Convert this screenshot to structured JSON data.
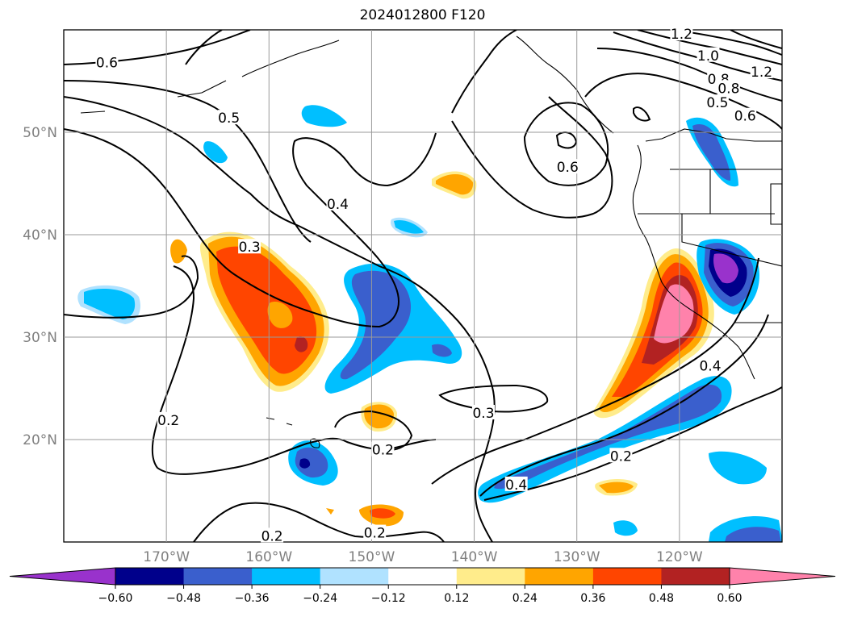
{
  "title": "2024012800 F120",
  "map": {
    "projection": "equirectangular",
    "lon_range": [
      -180,
      -110
    ],
    "lat_range": [
      10,
      60
    ],
    "lon_ticks": [
      {
        "value": -170,
        "label": "170°W"
      },
      {
        "value": -160,
        "label": "160°W"
      },
      {
        "value": -150,
        "label": "150°W"
      },
      {
        "value": -140,
        "label": "140°W"
      },
      {
        "value": -130,
        "label": "130°W"
      },
      {
        "value": -120,
        "label": "120°W"
      }
    ],
    "lat_ticks": [
      {
        "value": 20,
        "label": "20°N"
      },
      {
        "value": 30,
        "label": "30°N"
      },
      {
        "value": 40,
        "label": "40°N"
      },
      {
        "value": 50,
        "label": "50°N"
      }
    ],
    "gridlines": true
  },
  "colorbar": {
    "extend": "both",
    "boundaries": [
      -0.6,
      -0.48,
      -0.36,
      -0.24,
      -0.12,
      0.12,
      0.24,
      0.36,
      0.48,
      0.6
    ],
    "tick_labels": [
      "−0.60",
      "−0.48",
      "−0.36",
      "−0.24",
      "−0.12",
      "0.12",
      "0.24",
      "0.36",
      "0.48",
      "0.60"
    ],
    "colors": [
      "#9932cc",
      "#00008b",
      "#3a5fcd",
      "#00bfff",
      "#b0e2ff",
      "#ffffff",
      "#ffec8b",
      "#ffa500",
      "#ff4500",
      "#b22222",
      "#ff82ab"
    ]
  },
  "contour_labels": [
    {
      "text": "0.6",
      "lon": -175.8,
      "lat": 56.8
    },
    {
      "text": "0.5",
      "lon": -163.9,
      "lat": 51.4
    },
    {
      "text": "0.4",
      "lon": -153.3,
      "lat": 43.0
    },
    {
      "text": "0.3",
      "lon": -161.9,
      "lat": 38.8
    },
    {
      "text": "0.2",
      "lon": -169.8,
      "lat": 21.9
    },
    {
      "text": "0.3",
      "lon": -139.1,
      "lat": 22.6
    },
    {
      "text": "0.2",
      "lon": -148.9,
      "lat": 19.0
    },
    {
      "text": "0.2",
      "lon": -159.7,
      "lat": 10.6
    },
    {
      "text": "0.2",
      "lon": -149.7,
      "lat": 10.9
    },
    {
      "text": "0.4",
      "lon": -135.9,
      "lat": 15.6
    },
    {
      "text": "0.2",
      "lon": -125.7,
      "lat": 18.4
    },
    {
      "text": "0.4",
      "lon": -117.0,
      "lat": 27.2
    },
    {
      "text": "0.6",
      "lon": -130.9,
      "lat": 46.6
    },
    {
      "text": "1.2",
      "lon": -119.8,
      "lat": 59.6
    },
    {
      "text": "1.0",
      "lon": -117.2,
      "lat": 57.5
    },
    {
      "text": "0.8",
      "lon": -116.2,
      "lat": 55.2
    },
    {
      "text": "0.8",
      "lon": -115.2,
      "lat": 54.3
    },
    {
      "text": "0.5",
      "lon": -116.3,
      "lat": 52.9
    },
    {
      "text": "0.6",
      "lon": -113.6,
      "lat": 51.6
    },
    {
      "text": "1.2",
      "lon": -112.0,
      "lat": 55.9
    }
  ]
}
